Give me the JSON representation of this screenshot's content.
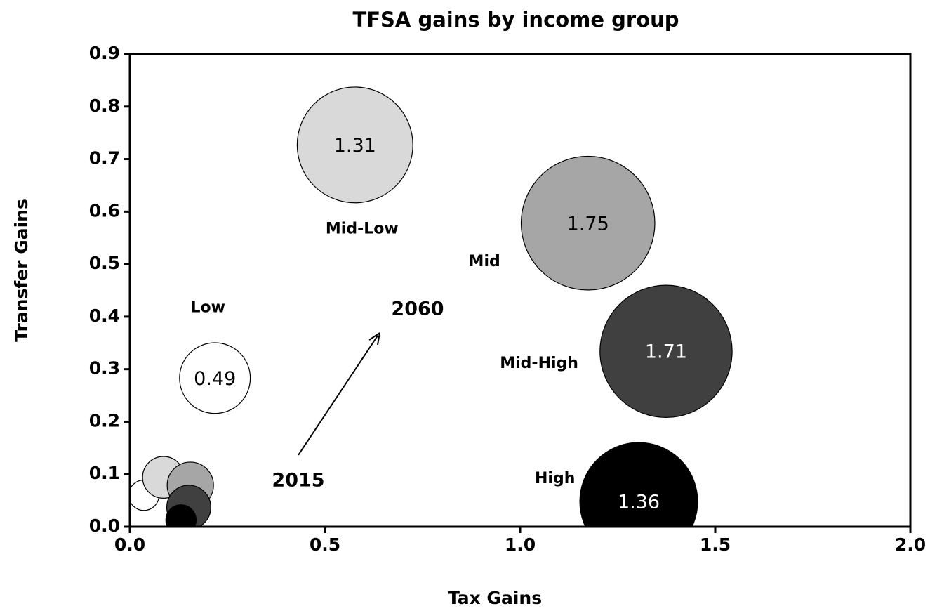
{
  "chart_data": {
    "type": "bubble",
    "title": "TFSA gains by income group",
    "xlabel": "Tax Gains",
    "ylabel": "Transfer Gains",
    "categories": [
      "Low",
      "Mid-Low",
      "Mid",
      "Mid-High",
      "High"
    ],
    "colors": [
      "#ffffff",
      "#d9d9d9",
      "#a6a6a6",
      "#404040",
      "#000000"
    ],
    "series": [
      {
        "name": "2015",
        "x": [
          0.036,
          0.086,
          0.155,
          0.151,
          0.131
        ],
        "values": [
          0.06,
          0.094,
          0.079,
          0.037,
          0.013
        ],
        "sizes": [
          0.09,
          0.17,
          0.21,
          0.19,
          0.09
        ]
      },
      {
        "name": "2060",
        "x": [
          0.218,
          0.577,
          1.174,
          1.374,
          1.304
        ],
        "values": [
          0.283,
          0.727,
          0.578,
          0.334,
          0.048
        ],
        "sizes": [
          0.49,
          1.31,
          1.75,
          1.71,
          1.36
        ]
      }
    ],
    "xlim": [
      0,
      2
    ],
    "xticks": [
      {
        "value": 0,
        "label": "0.0"
      },
      0.5,
      {
        "value": 1,
        "label": "1.0"
      },
      1.5,
      {
        "value": 2,
        "label": "2.0"
      }
    ],
    "ylim": [
      0,
      0.9
    ],
    "yticks": [
      {
        "value": 0,
        "label": "0.0"
      },
      0.1,
      0.2,
      0.3,
      0.4,
      0.5,
      0.6,
      0.7,
      0.8,
      0.9
    ]
  }
}
